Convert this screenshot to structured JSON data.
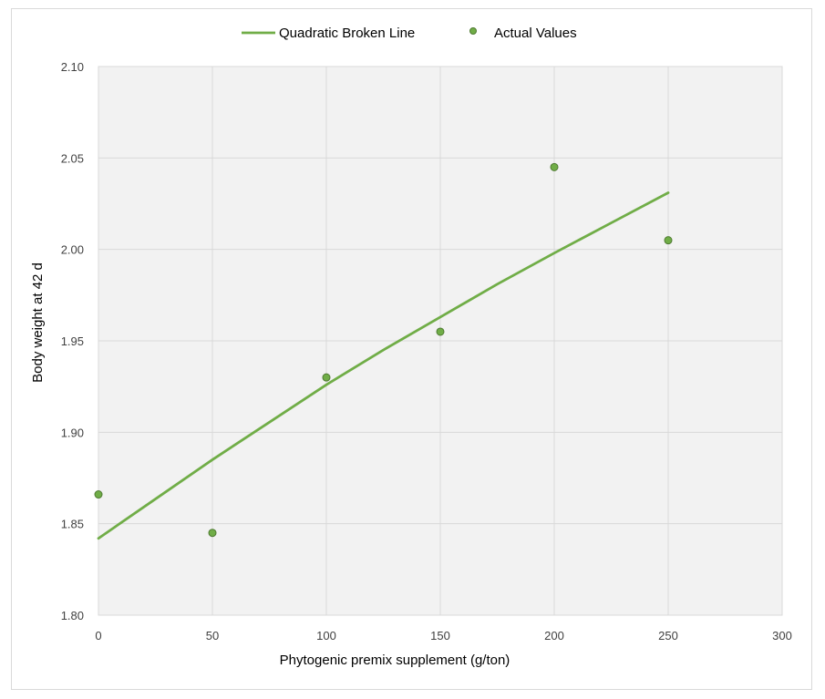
{
  "chart_data": {
    "type": "scatter",
    "title": "",
    "xlabel": "Phytogenic premix supplement (g/ton)",
    "ylabel": "Body weight at 42 d",
    "xlim": [
      0,
      300
    ],
    "ylim": [
      1.8,
      2.1
    ],
    "x_ticks": [
      0,
      50,
      100,
      150,
      200,
      250,
      300
    ],
    "y_ticks": [
      1.8,
      1.85,
      1.9,
      1.95,
      2.0,
      2.05,
      2.1
    ],
    "y_tick_labels": [
      "1.80",
      "1.85",
      "1.90",
      "1.95",
      "2.00",
      "2.05",
      "2.10"
    ],
    "grid": true,
    "legend_position": "top-center",
    "plot_background": "#f2f2f2",
    "grid_color": "#d9d9d9",
    "series": [
      {
        "name": "Quadratic Broken Line",
        "type": "line",
        "color": "#70ad47",
        "x": [
          0,
          25,
          50,
          75,
          100,
          125,
          150,
          175,
          200,
          225,
          250
        ],
        "y": [
          1.842,
          1.8635,
          1.885,
          1.9055,
          1.926,
          1.945,
          1.963,
          1.981,
          1.998,
          2.0145,
          2.031
        ]
      },
      {
        "name": "Actual Values",
        "type": "scatter",
        "color": "#70ad47",
        "marker_edge": "#4e7a31",
        "x": [
          0,
          50,
          100,
          150,
          200,
          250
        ],
        "y": [
          1.866,
          1.845,
          1.93,
          1.955,
          2.045,
          2.005
        ]
      }
    ]
  }
}
